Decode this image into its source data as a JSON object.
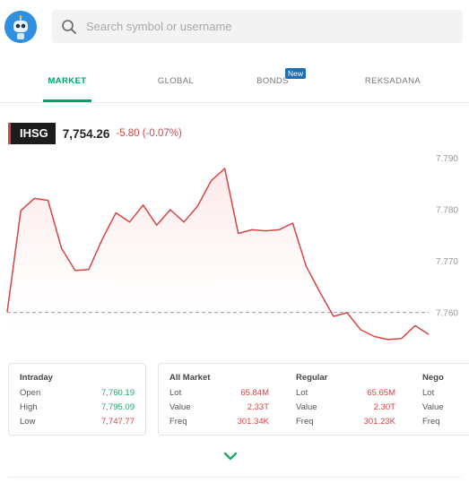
{
  "search": {
    "placeholder": "Search symbol or username"
  },
  "tabs": [
    {
      "label": "MARKET",
      "active": true
    },
    {
      "label": "GLOBAL",
      "active": false
    },
    {
      "label": "BONDS",
      "active": false,
      "badge": "New"
    },
    {
      "label": "REKSADANA",
      "active": false
    }
  ],
  "index": {
    "code": "IHSG",
    "value": "7,754.26",
    "change": "-5.80 (-0.07%)"
  },
  "chart_data": {
    "type": "line",
    "series": [
      {
        "values": [
          7760.1,
          7779.8,
          7782.2,
          7781.8,
          7772.5,
          7768.2,
          7768.4,
          7774.3,
          7779.4,
          7777.6,
          7780.9,
          7777.0,
          7780.0,
          7777.6,
          7780.7,
          7785.6,
          7788.0,
          7775.4,
          7776.1,
          7775.9,
          7776.1,
          7777.4,
          7769.0,
          7764.0,
          7759.3,
          7760.0,
          7756.7,
          7755.4,
          7754.8,
          7755.0,
          7757.5,
          7755.8
        ]
      }
    ],
    "yticks": [
      "7.790",
      "7.780",
      "7.770",
      "7.760"
    ],
    "ylim": [
      7752,
      7792
    ],
    "reference_line": 7760.06,
    "colors": {
      "line": "#d64545",
      "fill": "#fde7e7",
      "reference": "#999999"
    }
  },
  "intraday": {
    "title": "Intraday",
    "rows": [
      {
        "label": "Open",
        "value": "7,760.19",
        "color": "green"
      },
      {
        "label": "High",
        "value": "7,795.09",
        "color": "green"
      },
      {
        "label": "Low",
        "value": "7,747.77",
        "color": "red"
      }
    ]
  },
  "all_market": {
    "title": "All Market",
    "rows": [
      {
        "label": "Lot",
        "value": "65.84M"
      },
      {
        "label": "Value",
        "value": "2.33T"
      },
      {
        "label": "Freq",
        "value": "301.34K"
      }
    ]
  },
  "regular": {
    "title": "Regular",
    "rows": [
      {
        "label": "Lot",
        "value": "65.65M"
      },
      {
        "label": "Value",
        "value": "2.30T"
      },
      {
        "label": "Freq",
        "value": "301.23K"
      }
    ]
  },
  "nego": {
    "title": "Nego",
    "rows": [
      {
        "label": "Lot"
      },
      {
        "label": "Value"
      },
      {
        "label": "Freq"
      }
    ]
  },
  "icons": {
    "search": "search-icon",
    "avatar": "robot-avatar-icon",
    "expand": "chevron-down-icon"
  }
}
